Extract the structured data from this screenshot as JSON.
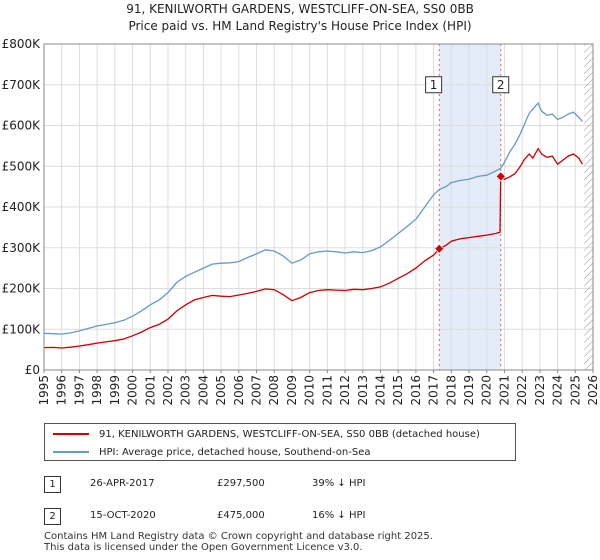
{
  "chart_data": {
    "type": "line",
    "title": "91, KENILWORTH GARDENS, WESTCLIFF-ON-SEA, SS0 0BB",
    "subtitle": "Price paid vs. HM Land Registry's House Price Index (HPI)",
    "xlim": [
      1995,
      2026
    ],
    "ylim": [
      0,
      800000
    ],
    "x_ticks": [
      "1995",
      "1996",
      "1997",
      "1998",
      "1999",
      "2000",
      "2001",
      "2002",
      "2003",
      "2004",
      "2005",
      "2006",
      "2007",
      "2008",
      "2009",
      "2010",
      "2011",
      "2012",
      "2013",
      "2014",
      "2015",
      "2016",
      "2017",
      "2018",
      "2019",
      "2020",
      "2021",
      "2022",
      "2023",
      "2024",
      "2025",
      "2026"
    ],
    "y_ticks": [
      {
        "value": 0,
        "label": "£0"
      },
      {
        "value": 100000,
        "label": "£100K"
      },
      {
        "value": 200000,
        "label": "£200K"
      },
      {
        "value": 300000,
        "label": "£300K"
      },
      {
        "value": 400000,
        "label": "£400K"
      },
      {
        "value": 500000,
        "label": "£500K"
      },
      {
        "value": 600000,
        "label": "£600K"
      },
      {
        "value": 700000,
        "label": "£700K"
      },
      {
        "value": 800000,
        "label": "£800K"
      }
    ],
    "grid": true,
    "shaded_period": [
      2017.32,
      2020.79
    ],
    "future_hatch_from": 2025.5,
    "series": [
      {
        "name": "91, KENILWORTH GARDENS, WESTCLIFF-ON-SEA, SS0 0BB (detached house)",
        "color": "#cc0000",
        "points": [
          [
            1995.0,
            55000
          ],
          [
            1995.5,
            55500
          ],
          [
            1996.0,
            54000
          ],
          [
            1996.5,
            56000
          ],
          [
            1997.0,
            59000
          ],
          [
            1997.5,
            62000
          ],
          [
            1998.0,
            66000
          ],
          [
            1998.5,
            69000
          ],
          [
            1999.0,
            72000
          ],
          [
            1999.5,
            76000
          ],
          [
            2000.0,
            84000
          ],
          [
            2000.5,
            93000
          ],
          [
            2001.0,
            104000
          ],
          [
            2001.5,
            112000
          ],
          [
            2002.0,
            125000
          ],
          [
            2002.5,
            145000
          ],
          [
            2003.0,
            160000
          ],
          [
            2003.5,
            172000
          ],
          [
            2004.0,
            178000
          ],
          [
            2004.5,
            183000
          ],
          [
            2005.0,
            181000
          ],
          [
            2005.5,
            180000
          ],
          [
            2006.0,
            184000
          ],
          [
            2006.5,
            188000
          ],
          [
            2007.0,
            193000
          ],
          [
            2007.5,
            199000
          ],
          [
            2008.0,
            197000
          ],
          [
            2008.5,
            185000
          ],
          [
            2009.0,
            170000
          ],
          [
            2009.5,
            178000
          ],
          [
            2010.0,
            190000
          ],
          [
            2010.5,
            195000
          ],
          [
            2011.0,
            197000
          ],
          [
            2011.5,
            196000
          ],
          [
            2012.0,
            195000
          ],
          [
            2012.5,
            198000
          ],
          [
            2013.0,
            197000
          ],
          [
            2013.5,
            200000
          ],
          [
            2014.0,
            204000
          ],
          [
            2014.5,
            213000
          ],
          [
            2015.0,
            225000
          ],
          [
            2015.5,
            236000
          ],
          [
            2016.0,
            250000
          ],
          [
            2016.5,
            268000
          ],
          [
            2017.0,
            282000
          ],
          [
            2017.32,
            297500
          ],
          [
            2017.7,
            306000
          ],
          [
            2018.0,
            316000
          ],
          [
            2018.5,
            322000
          ],
          [
            2019.0,
            325000
          ],
          [
            2019.5,
            328000
          ],
          [
            2020.0,
            331000
          ],
          [
            2020.5,
            335000
          ],
          [
            2020.75,
            338000
          ],
          [
            2020.79,
            475000
          ],
          [
            2021.0,
            468000
          ],
          [
            2021.3,
            474000
          ],
          [
            2021.6,
            482000
          ],
          [
            2021.9,
            500000
          ],
          [
            2022.1,
            515000
          ],
          [
            2022.4,
            530000
          ],
          [
            2022.6,
            520000
          ],
          [
            2022.9,
            543000
          ],
          [
            2023.1,
            530000
          ],
          [
            2023.4,
            522000
          ],
          [
            2023.7,
            525000
          ],
          [
            2024.0,
            505000
          ],
          [
            2024.3,
            515000
          ],
          [
            2024.6,
            525000
          ],
          [
            2024.9,
            530000
          ],
          [
            2025.2,
            520000
          ],
          [
            2025.4,
            505000
          ]
        ]
      },
      {
        "name": "HPI: Average price, detached house, Southend-on-Sea",
        "color": "#6699cc",
        "points": [
          [
            1995.0,
            90000
          ],
          [
            1995.5,
            89000
          ],
          [
            1996.0,
            88000
          ],
          [
            1996.5,
            91000
          ],
          [
            1997.0,
            96000
          ],
          [
            1997.5,
            102000
          ],
          [
            1998.0,
            108000
          ],
          [
            1998.5,
            112000
          ],
          [
            1999.0,
            116000
          ],
          [
            1999.5,
            122000
          ],
          [
            2000.0,
            132000
          ],
          [
            2000.5,
            145000
          ],
          [
            2001.0,
            160000
          ],
          [
            2001.5,
            172000
          ],
          [
            2002.0,
            190000
          ],
          [
            2002.5,
            215000
          ],
          [
            2003.0,
            230000
          ],
          [
            2003.5,
            240000
          ],
          [
            2004.0,
            250000
          ],
          [
            2004.5,
            260000
          ],
          [
            2005.0,
            262000
          ],
          [
            2005.5,
            263000
          ],
          [
            2006.0,
            266000
          ],
          [
            2006.5,
            276000
          ],
          [
            2007.0,
            285000
          ],
          [
            2007.5,
            295000
          ],
          [
            2008.0,
            292000
          ],
          [
            2008.5,
            280000
          ],
          [
            2009.0,
            262000
          ],
          [
            2009.5,
            270000
          ],
          [
            2010.0,
            285000
          ],
          [
            2010.5,
            290000
          ],
          [
            2011.0,
            292000
          ],
          [
            2011.5,
            290000
          ],
          [
            2012.0,
            287000
          ],
          [
            2012.5,
            290000
          ],
          [
            2013.0,
            288000
          ],
          [
            2013.5,
            293000
          ],
          [
            2014.0,
            302000
          ],
          [
            2014.5,
            318000
          ],
          [
            2015.0,
            335000
          ],
          [
            2015.5,
            352000
          ],
          [
            2016.0,
            370000
          ],
          [
            2016.5,
            400000
          ],
          [
            2017.0,
            430000
          ],
          [
            2017.32,
            443000
          ],
          [
            2017.7,
            450000
          ],
          [
            2018.0,
            460000
          ],
          [
            2018.5,
            465000
          ],
          [
            2019.0,
            468000
          ],
          [
            2019.5,
            475000
          ],
          [
            2020.0,
            478000
          ],
          [
            2020.5,
            488000
          ],
          [
            2020.79,
            495000
          ],
          [
            2021.0,
            510000
          ],
          [
            2021.3,
            535000
          ],
          [
            2021.6,
            555000
          ],
          [
            2021.9,
            580000
          ],
          [
            2022.1,
            600000
          ],
          [
            2022.4,
            630000
          ],
          [
            2022.6,
            640000
          ],
          [
            2022.9,
            655000
          ],
          [
            2023.1,
            635000
          ],
          [
            2023.4,
            625000
          ],
          [
            2023.7,
            628000
          ],
          [
            2024.0,
            615000
          ],
          [
            2024.3,
            620000
          ],
          [
            2024.6,
            628000
          ],
          [
            2024.9,
            633000
          ],
          [
            2025.2,
            620000
          ],
          [
            2025.4,
            610000
          ]
        ]
      }
    ],
    "sales": [
      {
        "label": "1",
        "x": 2017.32,
        "y": 297500
      },
      {
        "label": "2",
        "x": 2020.79,
        "y": 475000
      }
    ],
    "marker_boxes": [
      {
        "label": "1",
        "x": 2017.0,
        "y": 700000
      },
      {
        "label": "2",
        "x": 2020.79,
        "y": 700000
      }
    ]
  },
  "legend": {
    "property_label": "91, KENILWORTH GARDENS, WESTCLIFF-ON-SEA, SS0 0BB (detached house)",
    "hpi_label": "HPI: Average price, detached house, Southend-on-Sea",
    "property_color": "#cc0000",
    "hpi_color": "#6699cc"
  },
  "transactions": [
    {
      "id": "1",
      "date": "26-APR-2017",
      "price": "£297,500",
      "hpi": "39% ↓ HPI"
    },
    {
      "id": "2",
      "date": "15-OCT-2020",
      "price": "£475,000",
      "hpi": "16% ↓ HPI"
    }
  ],
  "footer": {
    "line1": "Contains HM Land Registry data © Crown copyright and database right 2025.",
    "line2": "This data is licensed under the Open Government Licence v3.0."
  }
}
